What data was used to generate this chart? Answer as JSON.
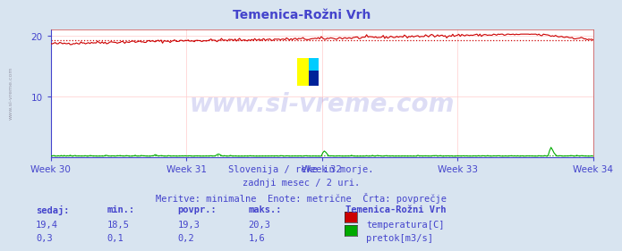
{
  "title": "Temenica-Rožni Vrh",
  "bg_color": "#d8e4f0",
  "plot_bg_color": "#ffffff",
  "grid_color": "#ffcccc",
  "title_color": "#4444cc",
  "tick_color": "#4444cc",
  "text_color": "#4444cc",
  "temp_color": "#cc0000",
  "temp_avg_color": "#cc0000",
  "flow_color": "#00aa00",
  "flow_avg_color": "#00aa00",
  "ylim": [
    0,
    21
  ],
  "yticks": [
    10,
    20
  ],
  "x_weeks": [
    "Week 30",
    "Week 31",
    "Week 32",
    "Week 33",
    "Week 34"
  ],
  "n_points": 360,
  "temp_min": 18.5,
  "temp_max": 20.3,
  "temp_avg": 19.3,
  "flow_min": 0.1,
  "flow_max": 1.6,
  "flow_avg": 0.2,
  "watermark": "www.si-vreme.com",
  "subtitle1": "Slovenija / reke in morje.",
  "subtitle2": "zadnji mesec / 2 uri.",
  "subtitle3": "Meritve: minimalne  Enote: metrične  Črta: povprečje",
  "legend_title": "Temenica-Rožni Vrh",
  "legend_temp": "temperatura[C]",
  "legend_flow": "pretok[m3/s]",
  "table_headers": [
    "sedaj:",
    "min.:",
    "povpr.:",
    "maks.:"
  ],
  "table_temp": [
    "19,4",
    "18,5",
    "19,3",
    "20,3"
  ],
  "table_flow": [
    "0,3",
    "0,1",
    "0,2",
    "1,6"
  ],
  "sidebar_text": "www.si-vreme.com"
}
